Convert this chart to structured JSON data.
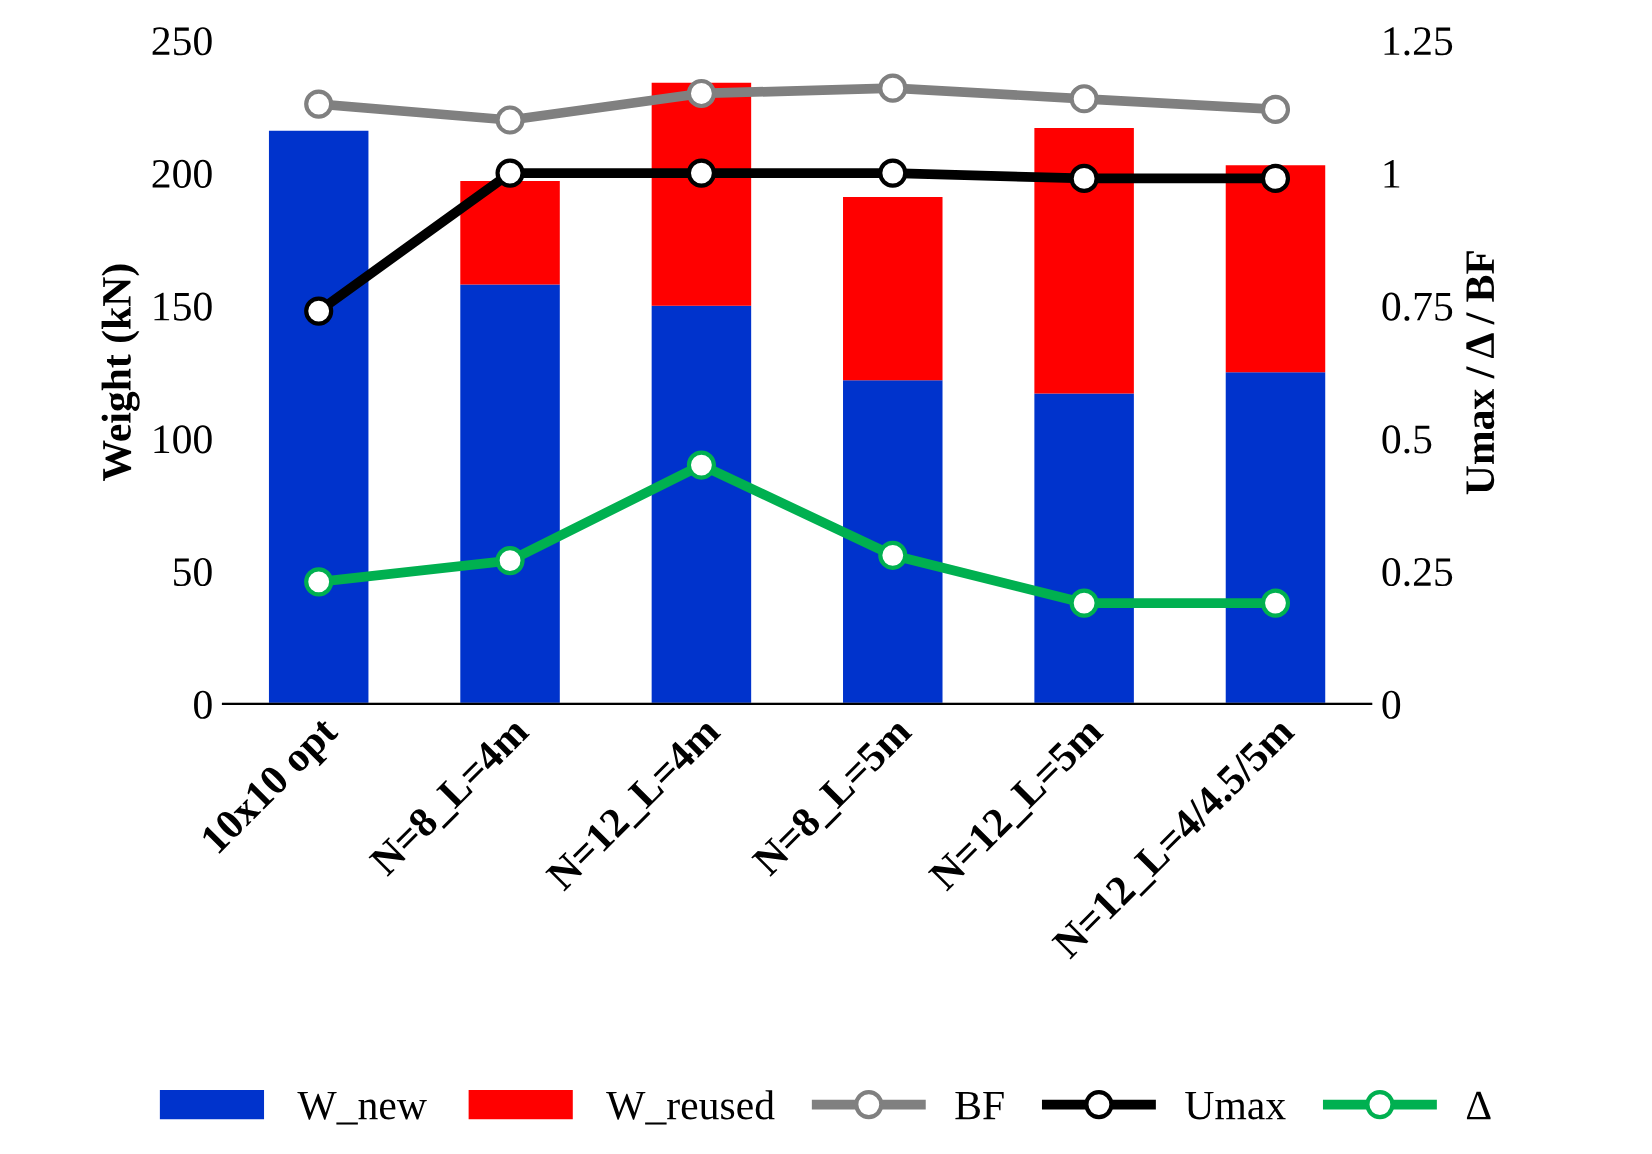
{
  "chart_data": {
    "type": "bar",
    "stacked": true,
    "ylabel": "Weight (kN)",
    "y2label": "Umax / Δ / BF",
    "categories": [
      "10x10 opt",
      "N=8_L=4m",
      "N=12_L=4m",
      "N=8_L=5m",
      "N=12_L=5m",
      "N=12_L=4/4.5/5m"
    ],
    "series": [
      {
        "name": "W_new",
        "color": "#0033cc",
        "values": [
          216,
          158,
          150,
          122,
          117,
          125
        ]
      },
      {
        "name": "W_reused",
        "color": "#ff0000",
        "values": [
          0,
          39,
          84,
          69,
          100,
          78
        ]
      },
      {
        "name": "BF",
        "type": "line",
        "axis": "y2",
        "color": "#808080",
        "values": [
          1.13,
          1.1,
          1.15,
          1.16,
          1.14,
          1.12
        ]
      },
      {
        "name": "Umax",
        "type": "line",
        "axis": "y2",
        "color": "#000000",
        "values": [
          0.74,
          1.0,
          1.0,
          1.0,
          0.99,
          0.99
        ]
      },
      {
        "name": "Δ",
        "type": "line",
        "axis": "y2",
        "color": "#00b050",
        "values": [
          0.23,
          0.27,
          0.45,
          0.28,
          0.19,
          0.19
        ]
      }
    ],
    "ylim": [
      0,
      250
    ],
    "yticks": [
      0,
      50,
      100,
      150,
      200,
      250
    ],
    "y2lim": [
      0,
      1.25
    ],
    "y2ticks": [
      0,
      0.25,
      0.5,
      0.75,
      1,
      1.25
    ],
    "grid": false,
    "legend": "bottom",
    "marker": "circle",
    "line_style": "solid"
  }
}
